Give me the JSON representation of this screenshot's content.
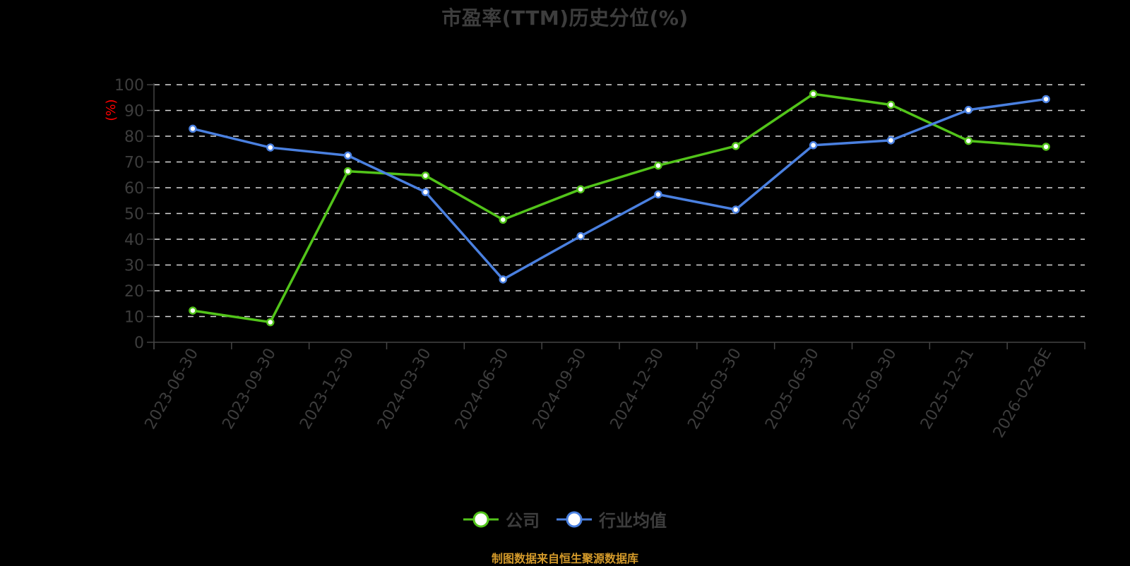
{
  "title": "市盈率(TTM)历史分位(%)",
  "footer": "制图数据来自恒生聚源数据库",
  "legend": [
    {
      "name": "公司",
      "color": "#52c41a"
    },
    {
      "name": "行业均值",
      "color": "#4a80e0"
    }
  ],
  "chart_data": {
    "type": "line",
    "title": "市盈率(TTM)历史分位(%)",
    "xlabel": "",
    "ylabel": "(%)",
    "ylim": [
      0,
      100
    ],
    "yticks": [
      0,
      10,
      20,
      30,
      40,
      50,
      60,
      70,
      80,
      90,
      100
    ],
    "grid": true,
    "legend_position": "bottom",
    "categories": [
      "2023-06-30",
      "2023-09-30",
      "2023-12-30",
      "2024-03-30",
      "2024-06-30",
      "2024-09-30",
      "2024-12-30",
      "2025-03-30",
      "2025-06-30",
      "2025-09-30",
      "2025-12-31",
      "2026-02-26E"
    ],
    "series": [
      {
        "name": "公司",
        "color": "#52c41a",
        "values": [
          12.3,
          7.8,
          66.4,
          64.7,
          47.6,
          59.4,
          68.6,
          76.2,
          96.4,
          92.2,
          78.2,
          75.9
        ]
      },
      {
        "name": "行业均值",
        "color": "#4a80e0",
        "values": [
          82.9,
          75.6,
          72.5,
          58.3,
          24.4,
          41.2,
          57.4,
          51.5,
          76.5,
          78.4,
          90.2,
          94.4
        ]
      }
    ]
  }
}
